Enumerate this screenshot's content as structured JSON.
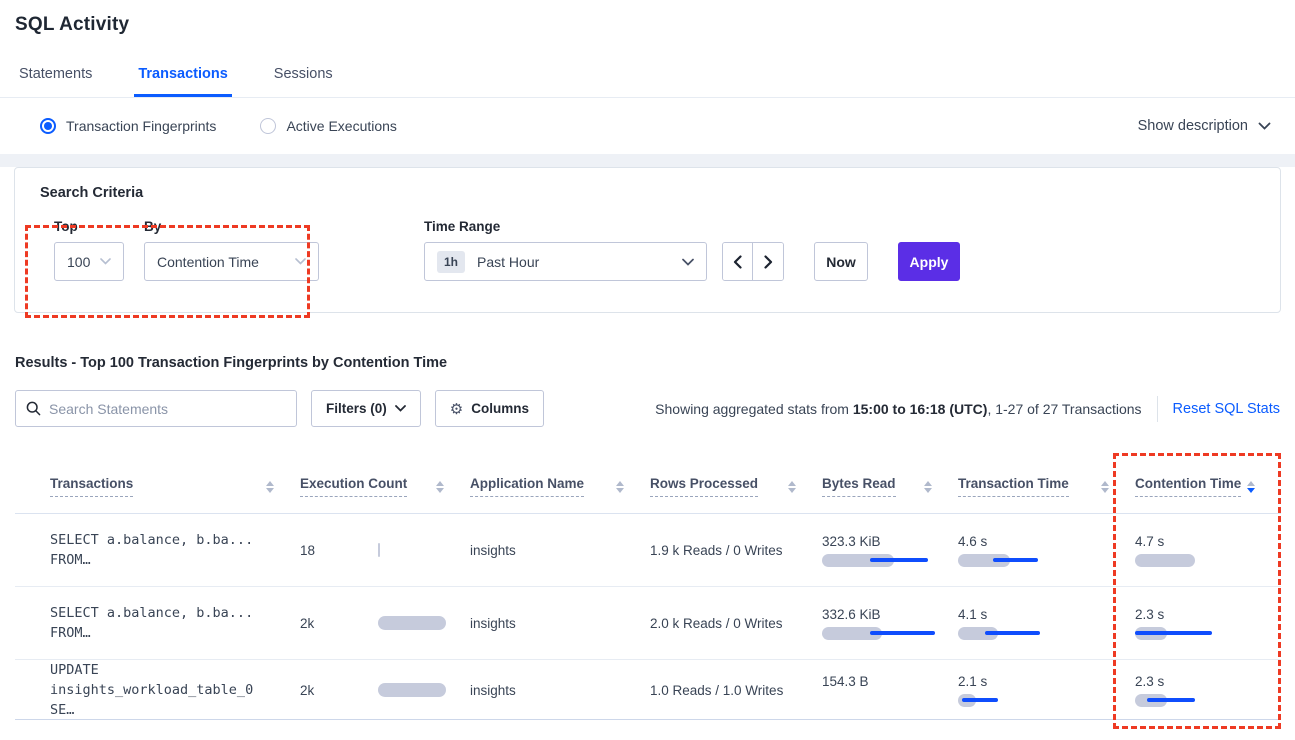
{
  "colors": {
    "blue": "#0b5cff",
    "purple": "#5b2ee6",
    "red": "#ee3a23",
    "bargray": "#c6cbdc",
    "barblue": "#0f4dfd"
  },
  "page": {
    "title": "SQL Activity"
  },
  "tabs": [
    {
      "label": "Statements",
      "active": false
    },
    {
      "label": "Transactions",
      "active": true
    },
    {
      "label": "Sessions",
      "active": false
    }
  ],
  "view_toggle": {
    "options": [
      {
        "label": "Transaction Fingerprints",
        "selected": true
      },
      {
        "label": "Active Executions",
        "selected": false
      }
    ],
    "show_description_label": "Show description"
  },
  "search_criteria": {
    "heading": "Search Criteria",
    "top": {
      "label": "Top",
      "value": "100"
    },
    "by": {
      "label": "By",
      "value": "Contention Time"
    },
    "time_range": {
      "label": "Time Range",
      "badge": "1h",
      "value": "Past Hour"
    },
    "now_label": "Now",
    "apply_label": "Apply"
  },
  "results": {
    "heading": "Results - Top 100 Transaction Fingerprints by Contention Time",
    "search_placeholder": "Search Statements",
    "filters_label": "Filters (0)",
    "columns_label": "Columns",
    "stats_prefix": "Showing aggregated stats from ",
    "stats_bold": "15:00 to 16:18 (UTC)",
    "stats_suffix": ", 1-27 of 27 Transactions",
    "reset_label": "Reset SQL Stats"
  },
  "table": {
    "headers": [
      {
        "label": "Transactions",
        "sorted": null
      },
      {
        "label": "Execution Count",
        "sorted": null
      },
      {
        "label": "Application Name",
        "sorted": null
      },
      {
        "label": "Rows Processed",
        "sorted": null
      },
      {
        "label": "Bytes Read",
        "sorted": null
      },
      {
        "label": "Transaction Time",
        "sorted": null
      },
      {
        "label": "Contention Time",
        "sorted": "desc"
      }
    ],
    "rows": [
      {
        "query_line1": "SELECT a.balance, b.ba...",
        "query_line2": "FROM…",
        "execution_count": "18",
        "application_name": "insights",
        "rows_processed": "1.9 k Reads / 0 Writes",
        "bytes_read": "323.3 KiB",
        "transaction_time": "4.6 s",
        "contention_time": "4.7 s",
        "bars": {
          "exec": {
            "g": 2,
            "gx": 17
          },
          "bytes": {
            "g": 72,
            "bx": 48,
            "bw": 58
          },
          "txn": {
            "g": 52,
            "bx": 35,
            "bw": 45
          },
          "cont": {
            "g": 60
          }
        }
      },
      {
        "query_line1": "SELECT a.balance, b.ba...",
        "query_line2": "FROM…",
        "execution_count": "2k",
        "application_name": "insights",
        "rows_processed": "2.0 k Reads / 0 Writes",
        "bytes_read": "332.6 KiB",
        "transaction_time": "4.1 s",
        "contention_time": "2.3 s",
        "bars": {
          "exec": {
            "g": 68,
            "gx": 17
          },
          "bytes": {
            "g": 60,
            "bx": 48,
            "bw": 65
          },
          "txn": {
            "g": 40,
            "bx": 27,
            "bw": 55
          },
          "cont": {
            "g": 32,
            "bx": 0,
            "bw": 77
          }
        }
      },
      {
        "query_line1": "UPDATE",
        "query_line2": "insights_workload_table_0 SE…",
        "execution_count": "2k",
        "application_name": "insights",
        "rows_processed": "1.0 Reads / 1.0 Writes",
        "bytes_read": "154.3 B",
        "transaction_time": "2.1 s",
        "contention_time": "2.3 s",
        "bars": {
          "exec": {
            "g": 68,
            "gx": 17
          },
          "bytes": null,
          "txn": {
            "g": 18,
            "bx": 4,
            "bw": 36
          },
          "cont": {
            "g": 32,
            "bx": 12,
            "bw": 48
          }
        }
      }
    ]
  }
}
